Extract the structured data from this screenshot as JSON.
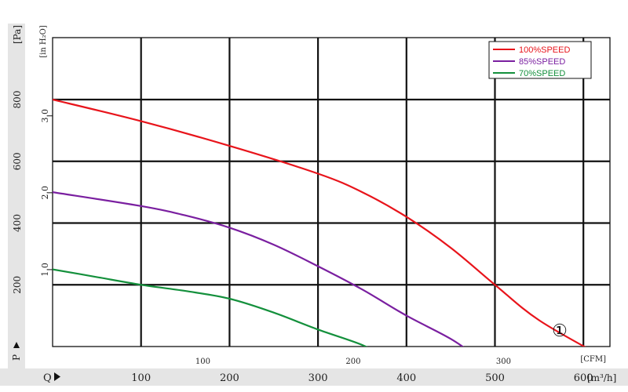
{
  "chart_data": {
    "type": "line",
    "x_axis_primary": {
      "label_prefix": "Q",
      "unit_label": "[m³/h]",
      "range": [
        0,
        630
      ],
      "ticks": [
        100,
        200,
        300,
        400,
        500,
        600
      ]
    },
    "x_axis_secondary": {
      "unit_label": "[CFM]",
      "ticks": [
        100,
        200,
        300
      ]
    },
    "y_axis_primary": {
      "label_prefix": "P",
      "unit_label": "[Pa]",
      "range": [
        0,
        800
      ],
      "ticks": [
        200,
        400,
        600,
        800
      ]
    },
    "y_axis_secondary": {
      "unit_label": "[in H₂O]",
      "ticks": [
        "1.0",
        "2.0",
        "3.0"
      ],
      "tick_values": [
        1.0,
        2.0,
        3.0
      ]
    },
    "grid": true,
    "legend_position": "top-right",
    "series": [
      {
        "name": "100%SPEED",
        "color": "#e8141b",
        "points": [
          [
            0,
            800
          ],
          [
            100,
            730
          ],
          [
            200,
            650
          ],
          [
            300,
            560
          ],
          [
            350,
            500
          ],
          [
            400,
            420
          ],
          [
            450,
            320
          ],
          [
            500,
            200
          ],
          [
            550,
            85
          ],
          [
            623,
            -35
          ]
        ]
      },
      {
        "name": "85%SPEED",
        "color": "#7a1fa0",
        "points": [
          [
            0,
            500
          ],
          [
            100,
            455
          ],
          [
            150,
            425
          ],
          [
            200,
            385
          ],
          [
            250,
            330
          ],
          [
            300,
            260
          ],
          [
            350,
            185
          ],
          [
            400,
            100
          ],
          [
            450,
            25
          ],
          [
            480,
            -35
          ]
        ]
      },
      {
        "name": "70%SPEED",
        "color": "#14903c",
        "points": [
          [
            0,
            250
          ],
          [
            50,
            225
          ],
          [
            100,
            200
          ],
          [
            150,
            180
          ],
          [
            200,
            155
          ],
          [
            250,
            110
          ],
          [
            300,
            55
          ],
          [
            350,
            5
          ],
          [
            375,
            -35
          ]
        ]
      }
    ],
    "annotation": "①"
  }
}
